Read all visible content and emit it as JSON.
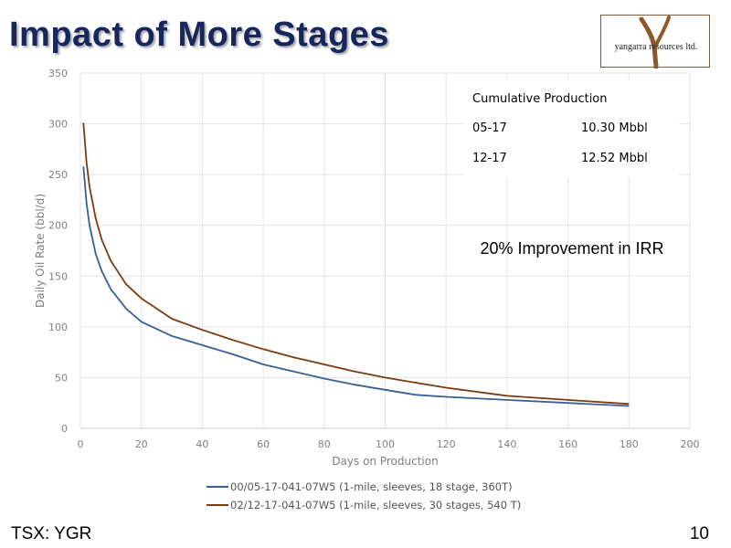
{
  "slide": {
    "title": "Impact of More Stages",
    "footer_left": "TSX: YGR",
    "page_number": "10",
    "logo_text": "yangarra resources ltd.",
    "logo_letter": "Y"
  },
  "colors": {
    "title": "#17275e",
    "series1": "#3a5f96",
    "series2": "#7b3a10",
    "grid": "#e3e3e3",
    "axis_text": "#808080"
  },
  "chart_data": {
    "type": "line",
    "xlabel": "Days on Production",
    "ylabel": "Daily Oil Rate (bbl/d)",
    "xlim": [
      0,
      200
    ],
    "ylim": [
      0,
      350
    ],
    "xticks": [
      0,
      20,
      40,
      60,
      80,
      100,
      120,
      140,
      160,
      180,
      200
    ],
    "yticks": [
      0,
      50,
      100,
      150,
      200,
      250,
      300,
      350
    ],
    "grid": true,
    "legend_position": "bottom",
    "series": [
      {
        "name": "00/05-17-041-07W5 (1-mile, sleeves, 18 stage, 360T)",
        "x": [
          1,
          2,
          3,
          5,
          7,
          10,
          15,
          20,
          30,
          40,
          50,
          60,
          70,
          80,
          90,
          100,
          110,
          120,
          140,
          160,
          180
        ],
        "y": [
          258,
          222,
          200,
          172,
          155,
          137,
          118,
          105,
          91,
          82,
          73,
          63,
          56,
          49,
          43,
          38,
          33,
          31,
          28,
          25,
          22
        ]
      },
      {
        "name": "02/12-17-041-07W5 (1-mile, sleeves, 30 stages, 540 T)",
        "x": [
          1,
          2,
          3,
          5,
          7,
          10,
          15,
          20,
          30,
          40,
          50,
          60,
          70,
          80,
          90,
          100,
          110,
          120,
          135,
          140,
          160,
          180
        ],
        "y": [
          301,
          262,
          238,
          207,
          186,
          165,
          142,
          128,
          108,
          97,
          87,
          78,
          70,
          63,
          56,
          50,
          45,
          40,
          34,
          32,
          28,
          24
        ]
      }
    ],
    "annotations": {
      "cumulative_title": "Cumulative Production",
      "rows": [
        {
          "well": "05-17",
          "value": "10.30 Mbbl"
        },
        {
          "well": "12-17",
          "value": "12.52 Mbbl"
        }
      ],
      "irr_note": "20% Improvement in IRR"
    }
  }
}
